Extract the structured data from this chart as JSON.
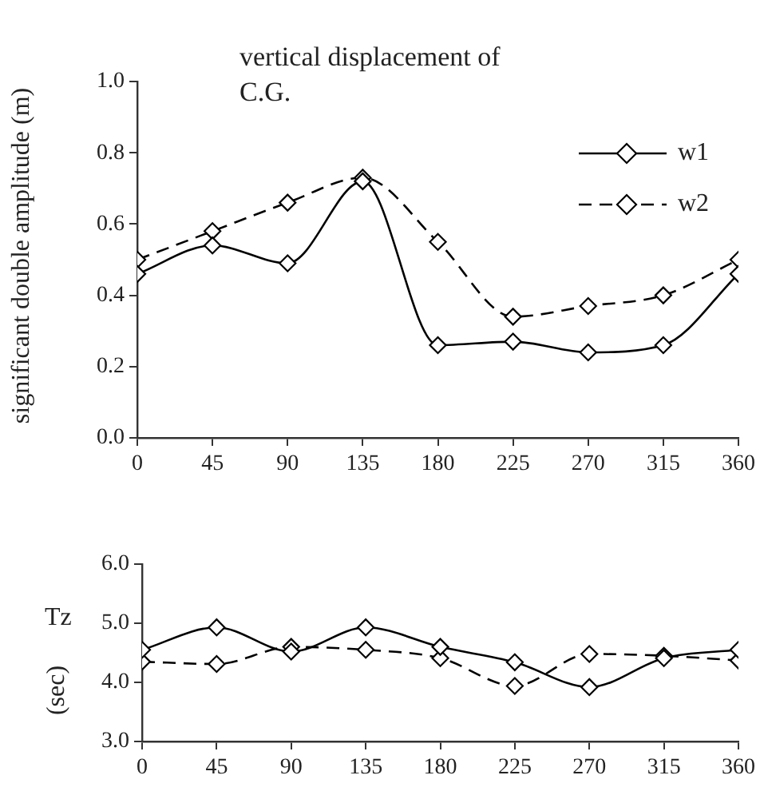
{
  "chart_data": [
    {
      "type": "line",
      "title": "vertical displacement of C.G.",
      "ylabel": "significant double amplitude (m)",
      "x": [
        0,
        45,
        90,
        135,
        180,
        225,
        270,
        315,
        360
      ],
      "series": [
        {
          "name": "w1",
          "color": "#000000",
          "line_style": "solid",
          "values": [
            0.46,
            0.54,
            0.49,
            0.72,
            0.26,
            0.27,
            0.24,
            0.26,
            0.46
          ]
        },
        {
          "name": "w2",
          "color": "#000000",
          "line_style": "dashed",
          "values": [
            0.5,
            0.58,
            0.66,
            0.73,
            0.55,
            0.34,
            0.37,
            0.4,
            0.5
          ]
        }
      ],
      "xlim": [
        0,
        360
      ],
      "xticks": [
        0,
        45,
        90,
        135,
        180,
        225,
        270,
        315,
        360
      ],
      "ylim": [
        0,
        1
      ],
      "yticks": [
        {
          "value": 0,
          "label": "0.0"
        },
        {
          "value": 0.2,
          "label": "0.2"
        },
        {
          "value": 0.4,
          "label": "0.4"
        },
        {
          "value": 0.6,
          "label": "0.6"
        },
        {
          "value": 0.8,
          "label": "0.8"
        },
        {
          "value": 1,
          "label": "1.0"
        }
      ],
      "marker": "diamond",
      "grid": false,
      "legend": "top right"
    },
    {
      "type": "line",
      "ylabel": "Tz (sec)",
      "x": [
        0,
        45,
        90,
        135,
        180,
        225,
        270,
        315,
        360
      ],
      "series": [
        {
          "color": "#000000",
          "line_style": "solid",
          "values": [
            4.55,
            4.93,
            4.52,
            4.93,
            4.6,
            4.34,
            3.92,
            4.41,
            4.55
          ]
        },
        {
          "color": "#000000",
          "line_style": "dashed",
          "values": [
            4.35,
            4.31,
            4.6,
            4.55,
            4.41,
            3.94,
            4.48,
            4.45,
            4.37
          ]
        }
      ],
      "xlim": [
        0,
        360
      ],
      "xticks": [
        0,
        45,
        90,
        135,
        180,
        225,
        270,
        315,
        360
      ],
      "ylim": [
        3,
        6
      ],
      "yticks": [
        {
          "value": 3,
          "label": "3.0"
        },
        {
          "value": 4,
          "label": "4.0"
        },
        {
          "value": 5,
          "label": "5.0"
        },
        {
          "value": 6,
          "label": "6.0"
        }
      ],
      "marker": "diamond",
      "grid": false
    }
  ]
}
